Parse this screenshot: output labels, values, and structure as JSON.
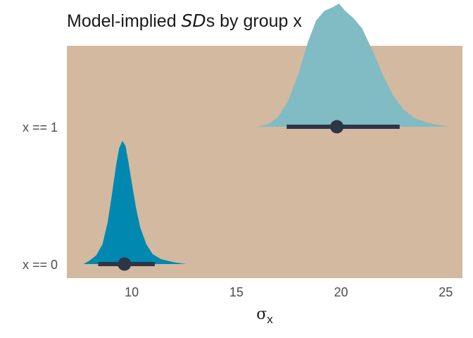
{
  "chart_data": {
    "type": "density-interval",
    "title": {
      "prefix": "Model-implied ",
      "italic": "SD",
      "suffix": "s by group x"
    },
    "xlabel": {
      "symbol": "σ",
      "subscript": "x"
    },
    "ylabel": "",
    "xlim": [
      6.9,
      25.8
    ],
    "xticks": [
      10,
      15,
      20,
      25
    ],
    "categories": [
      "x == 0",
      "x == 1"
    ],
    "panel_color": "#D2B9A0",
    "grid": false,
    "series": [
      {
        "category": "x == 0",
        "color": "#0088B0",
        "interval_color": "#2E3547",
        "point_estimate": 9.65,
        "interval": [
          8.4,
          11.1
        ],
        "density": [
          [
            7.7,
            0.0
          ],
          [
            8.0,
            0.03
          ],
          [
            8.3,
            0.07
          ],
          [
            8.6,
            0.16
          ],
          [
            8.85,
            0.34
          ],
          [
            9.05,
            0.56
          ],
          [
            9.25,
            0.8
          ],
          [
            9.4,
            0.94
          ],
          [
            9.55,
            1.0
          ],
          [
            9.7,
            0.96
          ],
          [
            9.85,
            0.82
          ],
          [
            10.0,
            0.66
          ],
          [
            10.2,
            0.46
          ],
          [
            10.4,
            0.3
          ],
          [
            10.7,
            0.16
          ],
          [
            11.0,
            0.08
          ],
          [
            11.4,
            0.04
          ],
          [
            12.0,
            0.015
          ],
          [
            12.6,
            0.0
          ]
        ]
      },
      {
        "category": "x == 1",
        "color": "#81BBC4",
        "interval_color": "#2E3547",
        "point_estimate": 19.8,
        "interval": [
          17.4,
          22.8
        ],
        "density": [
          [
            16.0,
            0.0
          ],
          [
            16.5,
            0.02
          ],
          [
            17.0,
            0.08
          ],
          [
            17.5,
            0.22
          ],
          [
            18.0,
            0.45
          ],
          [
            18.4,
            0.68
          ],
          [
            18.8,
            0.86
          ],
          [
            19.2,
            0.94
          ],
          [
            19.6,
            0.97
          ],
          [
            19.9,
            1.0
          ],
          [
            20.2,
            0.94
          ],
          [
            20.6,
            0.88
          ],
          [
            21.0,
            0.8
          ],
          [
            21.5,
            0.62
          ],
          [
            22.0,
            0.42
          ],
          [
            22.5,
            0.25
          ],
          [
            23.0,
            0.14
          ],
          [
            23.5,
            0.07
          ],
          [
            24.2,
            0.03
          ],
          [
            25.1,
            0.0
          ]
        ]
      }
    ]
  }
}
